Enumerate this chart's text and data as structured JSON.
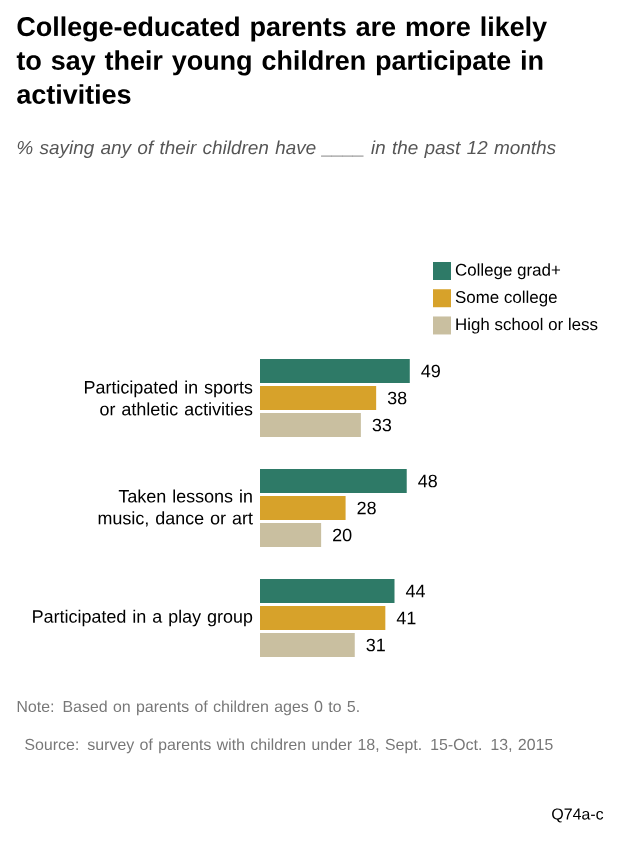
{
  "chart_data": {
    "type": "bar",
    "orientation": "horizontal",
    "title": "College-educated parents are more likely to say their young children participate in activities",
    "subtitle": "% saying any of their children have ____ in the past 12 months",
    "categories": [
      "Participated in sports or athletic activities",
      "Taken lessons in music, dance or art",
      "Participated in a play group"
    ],
    "series": [
      {
        "name": "College grad+",
        "color": "#2e7a67",
        "values": [
          49,
          48,
          44
        ]
      },
      {
        "name": "Some college",
        "color": "#d7a22a",
        "values": [
          38,
          28,
          41
        ]
      },
      {
        "name": "High school or less",
        "color": "#c9bfa0",
        "values": [
          33,
          20,
          31
        ]
      }
    ],
    "data_labels": true,
    "legend": "top right",
    "annotations": [
      "Note: Based on parents of children ages 0 to 5.",
      "Source: survey of parents with children under 18, Sept. 15-Oct. 13, 2015",
      "Q74a-c"
    ]
  }
}
